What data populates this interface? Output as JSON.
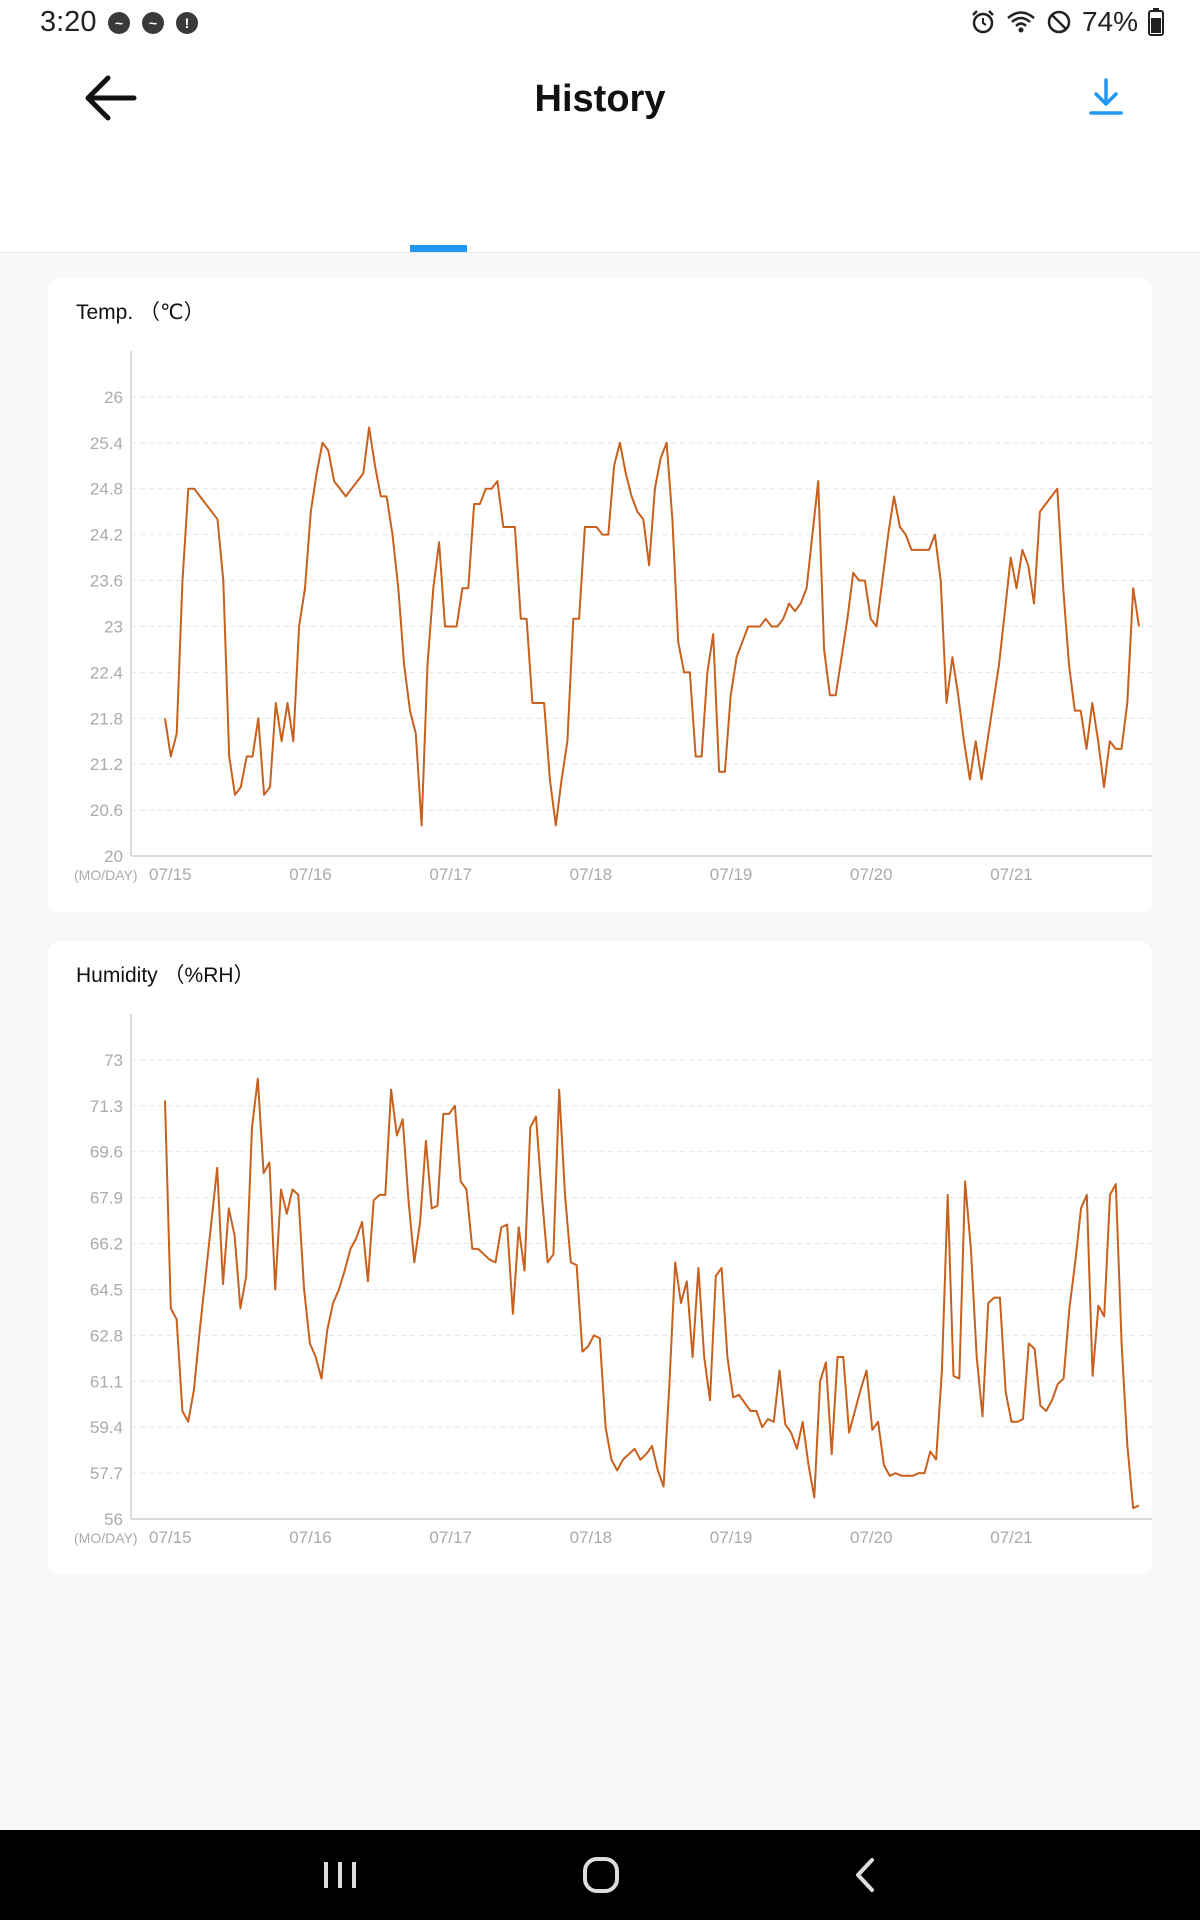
{
  "status_bar": {
    "time": "3:20",
    "battery": "74%",
    "left_icons": [
      "messenger-icon",
      "messenger-icon",
      "alert-icon"
    ],
    "right_icons": [
      "alarm-icon",
      "wifi-icon",
      "do-not-disturb-icon",
      "battery-icon"
    ]
  },
  "header": {
    "title": "History",
    "back_icon": "arrow-left-icon",
    "download_icon": "download-icon",
    "accent_color": "#2196f3"
  },
  "chart_data": [
    {
      "type": "line",
      "title": "Temp. （℃）",
      "xlabel": "(MO/DAY)",
      "x_ticks": [
        "07/15",
        "07/16",
        "07/17",
        "07/18",
        "07/19",
        "07/20",
        "07/21"
      ],
      "y_ticks": [
        "20",
        "20.6",
        "21.2",
        "21.8",
        "22.4",
        "23",
        "23.6",
        "24.2",
        "24.8",
        "25.4",
        "26"
      ],
      "ylim": [
        20,
        26.6
      ],
      "grid": true,
      "color": "#c8601e",
      "series": [
        {
          "values": [
            21.8,
            21.3,
            21.6,
            23.6,
            24.8,
            24.8,
            24.7,
            24.6,
            24.5,
            24.4,
            23.6,
            21.3,
            20.8,
            20.9,
            21.3,
            21.3,
            21.8,
            20.8,
            20.9,
            22.0,
            21.5,
            22.0,
            21.5,
            23.0,
            23.5,
            24.5,
            25.0,
            25.4,
            25.3,
            24.9,
            24.8,
            24.7,
            24.8,
            24.9,
            25.0,
            25.6,
            25.1,
            24.7,
            24.7,
            24.2,
            23.5,
            22.5,
            21.9,
            21.6,
            20.4,
            22.5,
            23.5,
            24.1,
            23.0,
            23.0,
            23.0,
            23.5,
            23.5,
            24.6,
            24.6,
            24.8,
            24.8,
            24.9,
            24.3,
            24.3,
            24.3,
            23.1,
            23.1,
            22.0,
            22.0,
            22.0,
            21.0,
            20.4,
            21.0,
            21.5,
            23.1,
            23.1,
            24.3,
            24.3,
            24.3,
            24.2,
            24.2,
            25.1,
            25.4,
            25.0,
            24.7,
            24.5,
            24.4,
            23.8,
            24.8,
            25.2,
            25.4,
            24.4,
            22.8,
            22.4,
            22.4,
            21.3,
            21.3,
            22.4,
            22.9,
            21.1,
            21.1,
            22.1,
            22.6,
            22.8,
            23.0,
            23.0,
            23.0,
            23.1,
            23.0,
            23.0,
            23.1,
            23.3,
            23.2,
            23.3,
            23.5,
            24.2,
            24.9,
            22.7,
            22.1,
            22.1,
            22.6,
            23.1,
            23.7,
            23.6,
            23.6,
            23.1,
            23.0,
            23.6,
            24.2,
            24.7,
            24.3,
            24.2,
            24.0,
            24.0,
            24.0,
            24.0,
            24.2,
            23.6,
            22.0,
            22.6,
            22.1,
            21.5,
            21.0,
            21.5,
            21.0,
            21.5,
            22.0,
            22.5,
            23.2,
            23.9,
            23.5,
            24.0,
            23.8,
            23.3,
            24.5,
            24.6,
            24.7,
            24.8,
            23.5,
            22.5,
            21.9,
            21.9,
            21.4,
            22.0,
            21.5,
            20.9,
            21.5,
            21.4,
            21.4,
            22.0,
            23.5,
            23.0
          ]
        }
      ]
    },
    {
      "type": "line",
      "title": "Humidity （%RH）",
      "xlabel": "(MO/DAY)",
      "x_ticks": [
        "07/15",
        "07/16",
        "07/17",
        "07/18",
        "07/19",
        "07/20",
        "07/21"
      ],
      "y_ticks": [
        "56",
        "57.7",
        "59.4",
        "61.1",
        "62.8",
        "64.5",
        "66.2",
        "67.9",
        "69.6",
        "71.3",
        "73"
      ],
      "ylim": [
        56,
        74.7
      ],
      "grid": true,
      "color": "#c8601e",
      "series": [
        {
          "values": [
            71.5,
            63.8,
            63.4,
            60.0,
            59.6,
            60.8,
            63.0,
            65.0,
            67.0,
            69.0,
            64.7,
            67.5,
            66.5,
            63.8,
            65.0,
            70.5,
            72.3,
            68.8,
            69.2,
            64.5,
            68.2,
            67.3,
            68.2,
            68.0,
            64.5,
            62.5,
            62.0,
            61.2,
            63.0,
            64.0,
            64.5,
            65.2,
            66.0,
            66.4,
            67.0,
            64.8,
            67.8,
            68.0,
            68.0,
            71.9,
            70.2,
            70.8,
            67.8,
            65.5,
            67.0,
            70.0,
            67.5,
            67.6,
            71.0,
            71.0,
            71.3,
            68.5,
            68.2,
            66.0,
            66.0,
            65.8,
            65.6,
            65.5,
            66.8,
            66.9,
            63.6,
            66.8,
            65.2,
            70.5,
            70.9,
            68.0,
            65.5,
            65.8,
            71.9,
            68.0,
            65.5,
            65.4,
            62.2,
            62.4,
            62.8,
            62.7,
            59.4,
            58.2,
            57.8,
            58.2,
            58.4,
            58.6,
            58.2,
            58.4,
            58.7,
            57.8,
            57.2,
            61.0,
            65.5,
            64.0,
            64.8,
            62.0,
            65.3,
            62.0,
            60.4,
            65.0,
            65.3,
            62.0,
            60.5,
            60.6,
            60.3,
            60.0,
            60.0,
            59.4,
            59.7,
            59.6,
            61.5,
            59.5,
            59.2,
            58.6,
            59.6,
            58.0,
            56.8,
            61.1,
            61.8,
            58.4,
            62.0,
            62.0,
            59.2,
            60.0,
            60.8,
            61.5,
            59.3,
            59.6,
            58.0,
            57.6,
            57.7,
            57.6,
            57.6,
            57.6,
            57.7,
            57.7,
            58.5,
            58.2,
            61.5,
            68.0,
            61.3,
            61.2,
            68.5,
            66.0,
            62.0,
            59.8,
            64.0,
            64.2,
            64.2,
            60.7,
            59.6,
            59.6,
            59.7,
            62.5,
            62.3,
            60.2,
            60.0,
            60.4,
            61.0,
            61.2,
            63.8,
            65.5,
            67.5,
            68.0,
            61.3,
            63.9,
            63.5,
            68.0,
            68.4,
            62.5,
            58.7,
            56.4,
            56.5
          ]
        }
      ]
    }
  ]
}
